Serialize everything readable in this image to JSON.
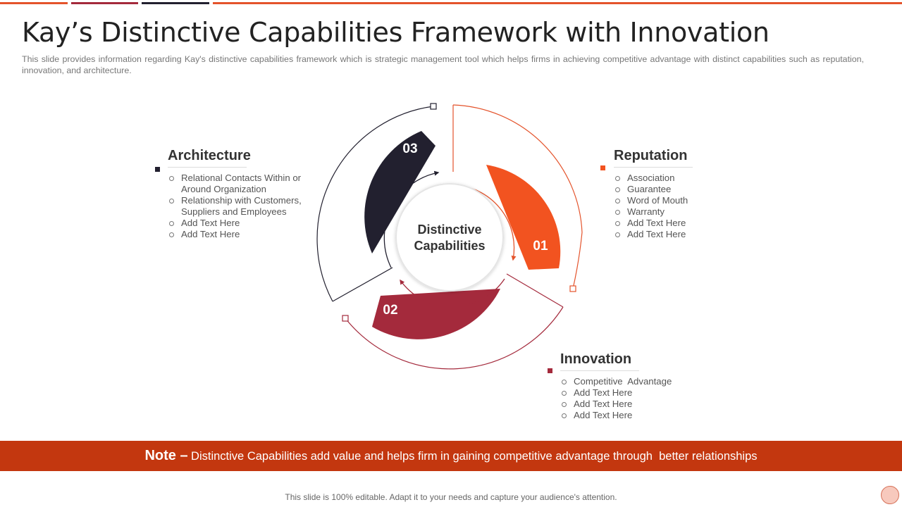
{
  "slide": {
    "title": "Kay’s Distinctive Capabilities Framework with Innovation",
    "subtitle": "This slide provides information regarding Kay's distinctive capabilities framework which is strategic management tool which helps firms in achieving competitive advantage with distinct capabilities such as reputation, innovation, and architecture."
  },
  "colors": {
    "orange": "#f25320",
    "maroon": "#a42a3c",
    "navy": "#22202f",
    "band": "#c3370f"
  },
  "diagram": {
    "center_line1": "Distinctive",
    "center_line2": "Capabilities",
    "segments": [
      {
        "number": "01",
        "color": "#f25320"
      },
      {
        "number": "02",
        "color": "#a42a3c"
      },
      {
        "number": "03",
        "color": "#22202f"
      }
    ]
  },
  "sections": {
    "reputation": {
      "title": "Reputation",
      "items": [
        "Association",
        "Guarantee",
        "Word of Mouth",
        "Warranty",
        "Add Text Here",
        "Add Text Here"
      ]
    },
    "innovation": {
      "title": "Innovation",
      "items": [
        "Competitive  Advantage",
        "Add Text Here",
        "Add Text Here",
        "Add Text Here"
      ]
    },
    "architecture": {
      "title": "Architecture",
      "items": [
        "Relational Contacts Within or Around Organization",
        "Relationship with Customers, Suppliers and Employees",
        "Add Text Here",
        "Add Text Here"
      ]
    }
  },
  "note": {
    "label": "Note –",
    "text": "Distinctive Capabilities add value and helps firm in gaining competitive advantage through  better relationships"
  },
  "footer": "This slide is 100% editable. Adapt it to your needs and capture your audience's attention."
}
